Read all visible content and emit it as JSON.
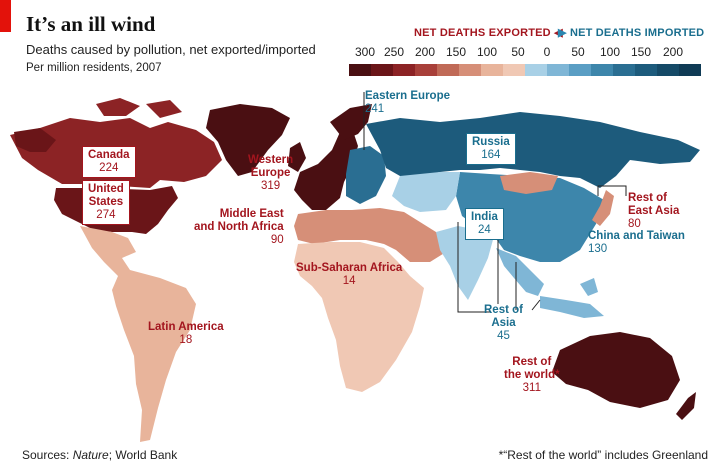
{
  "header": {
    "title": "It’s an ill wind",
    "subtitle": "Deaths caused by pollution, net exported/imported",
    "subsubtitle": "Per million residents, 2007"
  },
  "legend": {
    "exported_label": "NET DEATHS EXPORTED",
    "imported_label": "NET DEATHS IMPORTED",
    "exported_ticks": [
      "300",
      "250",
      "200",
      "150",
      "100",
      "50"
    ],
    "zero_tick": "0",
    "imported_ticks": [
      "50",
      "100",
      "150",
      "200"
    ],
    "exported_colors": [
      "#4a0f12",
      "#6a1518",
      "#8c2325",
      "#a8403a",
      "#c06a57",
      "#d68f78",
      "#e8b49b",
      "#f0c8b4"
    ],
    "imported_colors": [
      "#a8d0e6",
      "#7fb6d6",
      "#5a9ec4",
      "#3d86ab",
      "#2a6e92",
      "#1d5b7c",
      "#154a67",
      "#0f3b55"
    ]
  },
  "regions": [
    {
      "name": "Canada",
      "value": "224",
      "direction": "exported"
    },
    {
      "name": "United States",
      "name_line1": "United",
      "name_line2": "States",
      "value": "274",
      "direction": "exported"
    },
    {
      "name": "Western Europe",
      "name_line1": "Western",
      "name_line2": "Europe",
      "value": "319",
      "direction": "exported"
    },
    {
      "name": "Eastern Europe",
      "value": "241",
      "direction": "imported"
    },
    {
      "name": "Russia",
      "value": "164",
      "direction": "imported"
    },
    {
      "name": "Middle East and North Africa",
      "name_line1": "Middle East",
      "name_line2": "and North Africa",
      "value": "90",
      "direction": "exported"
    },
    {
      "name": "Sub-Saharan Africa",
      "value": "14",
      "direction": "exported"
    },
    {
      "name": "Latin America",
      "value": "18",
      "direction": "exported"
    },
    {
      "name": "India",
      "value": "24",
      "direction": "imported"
    },
    {
      "name": "Rest of Asia",
      "name_line1": "Rest of",
      "name_line2": "Asia",
      "value": "45",
      "direction": "imported"
    },
    {
      "name": "China and Taiwan",
      "value": "130",
      "direction": "imported"
    },
    {
      "name": "Rest of East Asia",
      "name_line1": "Rest of",
      "name_line2": "East Asia",
      "value": "80",
      "direction": "exported"
    },
    {
      "name": "Rest of the world*",
      "name_line1": "Rest of",
      "name_line2": "the world*",
      "value": "311",
      "direction": "exported"
    }
  ],
  "footer": {
    "sources_label": "Sources: ",
    "sources_italic": "Nature",
    "sources_rest": "; World Bank",
    "note": "*“Rest of the world” includes Greenland"
  }
}
